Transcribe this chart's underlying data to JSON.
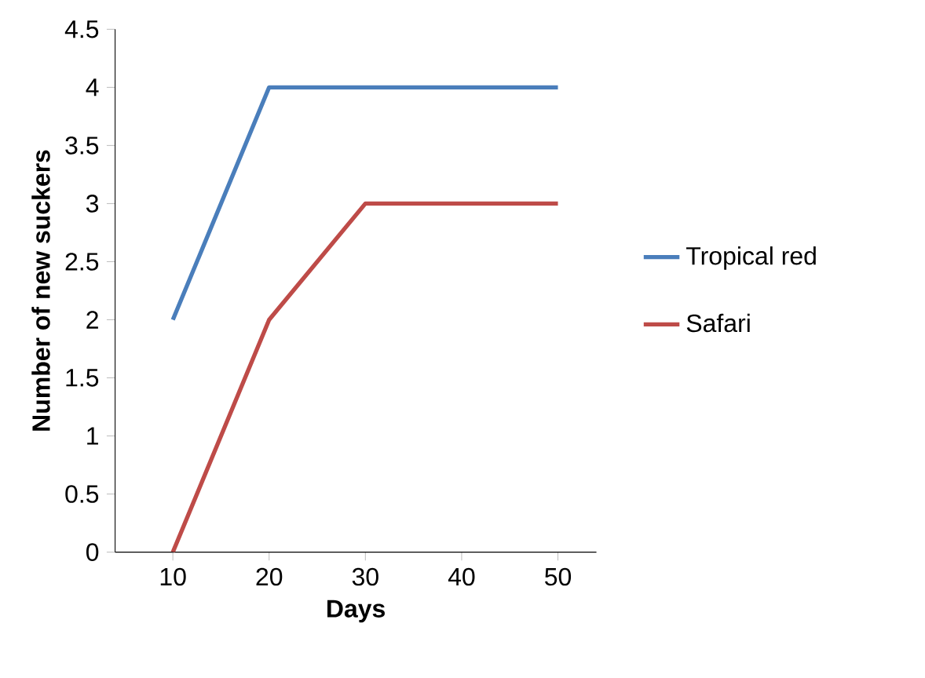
{
  "chart_data": {
    "type": "line",
    "xlabel": "Days",
    "ylabel": "Number of new suckers",
    "categories": [
      "10",
      "20",
      "30",
      "40",
      "50"
    ],
    "series": [
      {
        "name": "Tropical red",
        "color": "#4a7ebb",
        "values": [
          2,
          4,
          4,
          4,
          4
        ]
      },
      {
        "name": "Safari",
        "color": "#be4b48",
        "values": [
          0,
          2,
          3,
          3,
          3
        ]
      }
    ],
    "ylim": [
      0,
      4.5
    ],
    "yticks": [
      0,
      0.5,
      1,
      1.5,
      2,
      2.5,
      3,
      3.5,
      4,
      4.5
    ],
    "grid": false,
    "legend": "right",
    "marker": "none",
    "line_style": "solid"
  }
}
